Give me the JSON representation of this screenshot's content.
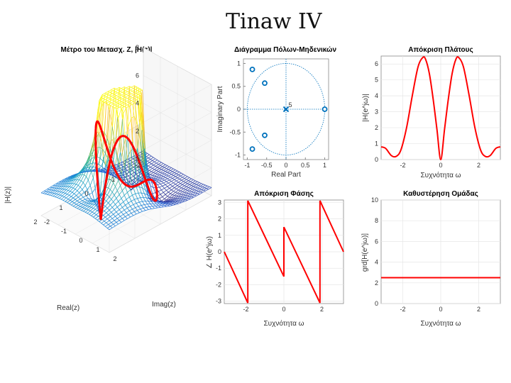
{
  "page": {
    "handwritten_title": "Tinaw IV"
  },
  "chart_data": [
    {
      "id": "surface",
      "type": "surface3d",
      "title": "Μέτρο του Μετασχ. Ζ, |H(z)|",
      "xlabel": "Real(z)",
      "ylabel": "Imag(z)",
      "zlabel": "|H(z)|",
      "xticks": [
        "-2",
        "-1",
        "0",
        "1",
        "2"
      ],
      "yticks": [
        "-2",
        "-1",
        "0",
        "1",
        "2"
      ],
      "zticks": [
        "0",
        "2",
        "4",
        "6",
        "8"
      ],
      "xlim": [
        -2,
        2
      ],
      "ylim": [
        -2,
        2
      ],
      "zlim": [
        0,
        8
      ],
      "colormap": "parula",
      "unit_circle_color": "#ff0000"
    },
    {
      "id": "polezero",
      "type": "scatter",
      "title": "Διάγραμμα Πόλων-Μηδενικών",
      "xlabel": "Real Part",
      "ylabel": "Imaginary Part",
      "xticks": [
        "-1",
        "-0.5",
        "0",
        "0.5",
        "1"
      ],
      "yticks": [
        "-1",
        "-0.5",
        "0",
        "0.5",
        "1"
      ],
      "xlim": [
        -1.1,
        1.1
      ],
      "ylim": [
        -1.1,
        1.1
      ],
      "zeros": [
        {
          "x": 1.0,
          "y": 0.0
        },
        {
          "x": -0.87,
          "y": 0.87
        },
        {
          "x": -0.87,
          "y": -0.87
        },
        {
          "x": -0.55,
          "y": 0.57
        },
        {
          "x": -0.55,
          "y": -0.57
        }
      ],
      "poles": [
        {
          "x": 0.0,
          "y": 0.0
        }
      ],
      "pole_multiplicity": "5",
      "color": "#0072bd"
    },
    {
      "id": "magnitude",
      "type": "line",
      "title": "Απόκριση Πλάτους",
      "xlabel": "Συχνότητα ω",
      "ylabel": "|H(e^jω)|",
      "xticks": [
        "-2",
        "0",
        "2"
      ],
      "yticks": [
        "0",
        "1",
        "2",
        "3",
        "4",
        "5",
        "6"
      ],
      "xlim": [
        -3.14,
        3.14
      ],
      "ylim": [
        0,
        6.5
      ],
      "color": "#ff0000",
      "x": [
        -3.14,
        -2.9,
        -2.6,
        -2.35,
        -2.1,
        -1.8,
        -1.5,
        -1.2,
        -0.95,
        -0.8,
        -0.6,
        -0.4,
        -0.2,
        0,
        0.2,
        0.4,
        0.6,
        0.8,
        0.95,
        1.2,
        1.5,
        1.8,
        2.1,
        2.35,
        2.6,
        2.9,
        3.14
      ],
      "y": [
        0.8,
        0.7,
        0.25,
        0.2,
        0.6,
        2.0,
        4.0,
        5.8,
        6.4,
        6.3,
        5.4,
        3.8,
        1.9,
        0.0,
        1.9,
        3.8,
        5.4,
        6.3,
        6.4,
        5.8,
        4.0,
        2.0,
        0.6,
        0.2,
        0.25,
        0.7,
        0.8
      ]
    },
    {
      "id": "phase",
      "type": "line",
      "title": "Απόκριση Φάσης",
      "xlabel": "Συχνότητα ω",
      "ylabel": "∠ H(e^jω)",
      "xticks": [
        "-2",
        "0",
        "2"
      ],
      "yticks": [
        "-3",
        "-2",
        "-1",
        "0",
        "1",
        "2",
        "3"
      ],
      "xlim": [
        -3.14,
        3.14
      ],
      "ylim": [
        -3.14,
        3.14
      ],
      "color": "#ff0000",
      "segments": [
        {
          "x": [
            -3.14,
            -1.9
          ],
          "y": [
            0.0,
            -3.1
          ]
        },
        {
          "x": [
            -1.9,
            -1.9
          ],
          "y": [
            -3.1,
            3.1
          ]
        },
        {
          "x": [
            -1.9,
            0.0
          ],
          "y": [
            3.1,
            -1.5
          ]
        },
        {
          "x": [
            0.0,
            0.0
          ],
          "y": [
            -1.5,
            1.5
          ]
        },
        {
          "x": [
            0.0,
            1.9
          ],
          "y": [
            1.5,
            -3.1
          ]
        },
        {
          "x": [
            1.9,
            1.9
          ],
          "y": [
            -3.1,
            3.1
          ]
        },
        {
          "x": [
            1.9,
            3.14
          ],
          "y": [
            3.1,
            0.0
          ]
        }
      ]
    },
    {
      "id": "groupdelay",
      "type": "line",
      "title": "Καθυστέρηση Ομάδας",
      "xlabel": "Συχνότητα ω",
      "ylabel": "grd[H(e^jω)]",
      "xticks": [
        "-2",
        "0",
        "2"
      ],
      "yticks": [
        "0",
        "2",
        "4",
        "6",
        "8",
        "10"
      ],
      "xlim": [
        -3.14,
        3.14
      ],
      "ylim": [
        0,
        10
      ],
      "color": "#ff0000",
      "x": [
        -3.14,
        3.14
      ],
      "y": [
        2.5,
        2.5
      ]
    }
  ]
}
